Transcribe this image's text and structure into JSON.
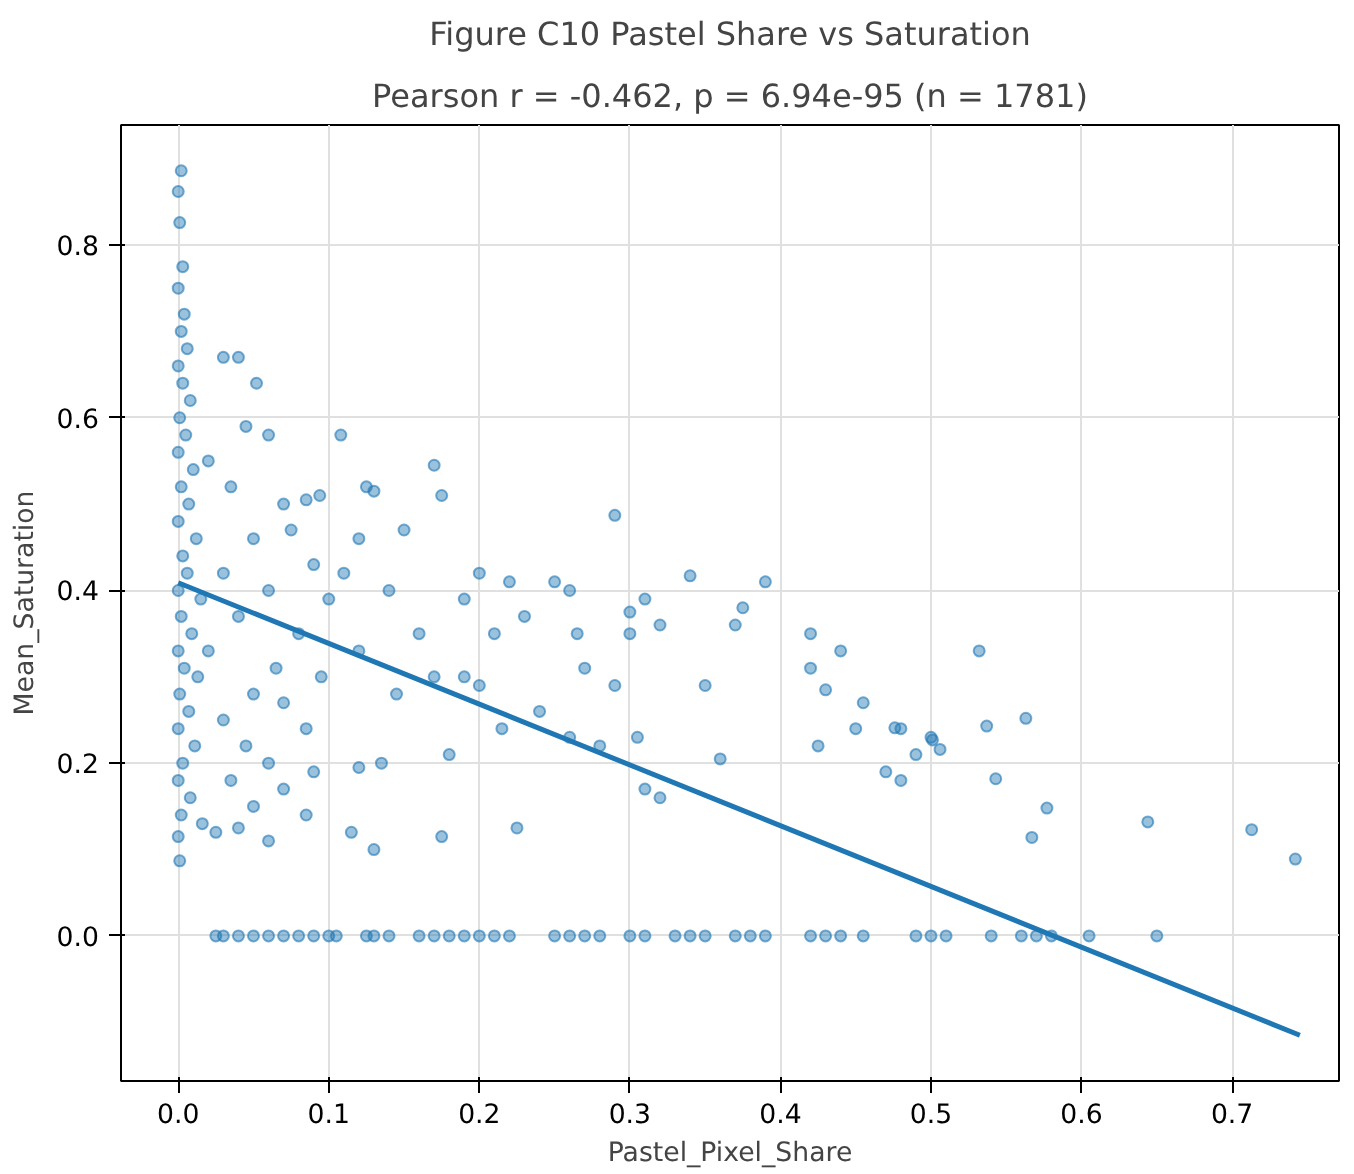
{
  "chart_data": {
    "type": "scatter",
    "title": "Figure C10 Pastel Share vs Saturation",
    "subtitle": "Pearson r = -0.462, p = 6.94e-95 (n = 1781)",
    "xlabel": "Pastel_Pixel_Share",
    "ylabel": "Mean_Saturation",
    "xlim": [
      -0.038,
      0.771
    ],
    "ylim": [
      -0.168,
      0.939
    ],
    "xticks": [
      {
        "value": 0,
        "label": "0.0"
      },
      {
        "value": 0.1,
        "label": "0.1"
      },
      {
        "value": 0.2,
        "label": "0.2"
      },
      {
        "value": 0.3,
        "label": "0.3"
      },
      {
        "value": 0.4,
        "label": "0.4"
      },
      {
        "value": 0.5,
        "label": "0.5"
      },
      {
        "value": 0.6,
        "label": "0.6"
      },
      {
        "value": 0.7,
        "label": "0.7"
      }
    ],
    "yticks": [
      {
        "value": 0,
        "label": "0.0"
      },
      {
        "value": 0.2,
        "label": "0.2"
      },
      {
        "value": 0.4,
        "label": "0.4"
      },
      {
        "value": 0.6,
        "label": "0.6"
      },
      {
        "value": 0.8,
        "label": "0.8"
      }
    ],
    "grid": true,
    "series": [
      {
        "marker": "circle",
        "color": "#1f77b4",
        "x": [
          0.002,
          0.0,
          0.001,
          0.003,
          0.0,
          0.004,
          0.002,
          0.006,
          0.0,
          0.003,
          0.008,
          0.001,
          0.005,
          0.0,
          0.01,
          0.002,
          0.007,
          0.0,
          0.012,
          0.003,
          0.006,
          0.0,
          0.015,
          0.002,
          0.009,
          0.0,
          0.004,
          0.013,
          0.001,
          0.007,
          0.0,
          0.011,
          0.003,
          0.0,
          0.008,
          0.002,
          0.016,
          0.0,
          0.001,
          0.03,
          0.04,
          0.052,
          0.045,
          0.06,
          0.02,
          0.035,
          0.07,
          0.085,
          0.094,
          0.108,
          0.05,
          0.075,
          0.09,
          0.03,
          0.06,
          0.1,
          0.04,
          0.08,
          0.02,
          0.065,
          0.095,
          0.05,
          0.07,
          0.03,
          0.085,
          0.045,
          0.06,
          0.09,
          0.035,
          0.07,
          0.05,
          0.025,
          0.04,
          0.06,
          0.085,
          0.115,
          0.12,
          0.125,
          0.13,
          0.15,
          0.17,
          0.175,
          0.11,
          0.14,
          0.16,
          0.19,
          0.2,
          0.22,
          0.25,
          0.26,
          0.21,
          0.23,
          0.27,
          0.29,
          0.12,
          0.145,
          0.17,
          0.19,
          0.2,
          0.215,
          0.24,
          0.18,
          0.135,
          0.12,
          0.175,
          0.225,
          0.13,
          0.26,
          0.28,
          0.29,
          0.265,
          0.3,
          0.31,
          0.34,
          0.375,
          0.39,
          0.3,
          0.32,
          0.35,
          0.305,
          0.31,
          0.32,
          0.36,
          0.37,
          0.42,
          0.42,
          0.44,
          0.43,
          0.45,
          0.455,
          0.425,
          0.47,
          0.48,
          0.48,
          0.49,
          0.5,
          0.532,
          0.476,
          0.501,
          0.506,
          0.537,
          0.563,
          0.543,
          0.577,
          0.567,
          0.644,
          0.713,
          0.742,
          0.025,
          0.03,
          0.04,
          0.05,
          0.06,
          0.07,
          0.08,
          0.09,
          0.1,
          0.105,
          0.125,
          0.13,
          0.14,
          0.16,
          0.17,
          0.18,
          0.19,
          0.2,
          0.21,
          0.22,
          0.25,
          0.26,
          0.27,
          0.28,
          0.3,
          0.31,
          0.33,
          0.34,
          0.35,
          0.37,
          0.38,
          0.39,
          0.42,
          0.43,
          0.44,
          0.455,
          0.49,
          0.5,
          0.51,
          0.54,
          0.56,
          0.57,
          0.58,
          0.605,
          0.65
        ],
        "values": [
          0.886,
          0.862,
          0.826,
          0.775,
          0.75,
          0.72,
          0.7,
          0.68,
          0.66,
          0.64,
          0.62,
          0.6,
          0.58,
          0.56,
          0.54,
          0.52,
          0.5,
          0.48,
          0.46,
          0.44,
          0.42,
          0.4,
          0.39,
          0.37,
          0.35,
          0.33,
          0.31,
          0.3,
          0.28,
          0.26,
          0.24,
          0.22,
          0.2,
          0.18,
          0.16,
          0.14,
          0.13,
          0.115,
          0.087,
          0.67,
          0.67,
          0.64,
          0.59,
          0.58,
          0.55,
          0.52,
          0.5,
          0.505,
          0.51,
          0.58,
          0.46,
          0.47,
          0.43,
          0.42,
          0.4,
          0.39,
          0.37,
          0.35,
          0.33,
          0.31,
          0.3,
          0.28,
          0.27,
          0.25,
          0.24,
          0.22,
          0.2,
          0.19,
          0.18,
          0.17,
          0.15,
          0.12,
          0.125,
          0.11,
          0.14,
          0.12,
          0.46,
          0.52,
          0.515,
          0.47,
          0.545,
          0.51,
          0.42,
          0.4,
          0.35,
          0.39,
          0.42,
          0.41,
          0.41,
          0.4,
          0.35,
          0.37,
          0.31,
          0.487,
          0.33,
          0.28,
          0.3,
          0.3,
          0.29,
          0.24,
          0.26,
          0.21,
          0.2,
          0.195,
          0.115,
          0.125,
          0.1,
          0.23,
          0.22,
          0.29,
          0.35,
          0.375,
          0.39,
          0.417,
          0.38,
          0.41,
          0.35,
          0.36,
          0.29,
          0.23,
          0.17,
          0.16,
          0.205,
          0.36,
          0.31,
          0.35,
          0.33,
          0.285,
          0.24,
          0.27,
          0.22,
          0.19,
          0.24,
          0.18,
          0.21,
          0.23,
          0.33,
          0.241,
          0.227,
          0.216,
          0.243,
          0.252,
          0.182,
          0.148,
          0.114,
          0.132,
          0.123,
          0.089,
          0,
          0,
          0,
          0,
          0,
          0,
          0,
          0,
          0,
          0,
          0,
          0,
          0,
          0,
          0,
          0,
          0,
          0,
          0,
          0,
          0,
          0,
          0,
          0,
          0,
          0,
          0,
          0,
          0,
          0,
          0,
          0,
          0,
          0,
          0,
          0,
          0,
          0,
          0,
          0,
          0,
          0,
          0,
          0,
          0
        ]
      },
      {
        "type": "line",
        "color": "#1f77b4",
        "x": [
          0,
          0.745
        ],
        "values": [
          0.409,
          -0.115
        ]
      }
    ]
  }
}
